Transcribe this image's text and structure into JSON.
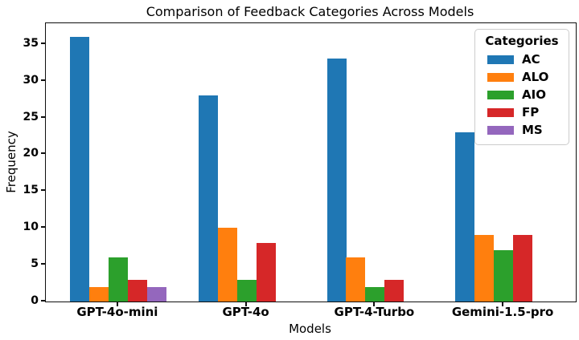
{
  "chart_data": {
    "type": "bar",
    "title": "Comparison of Feedback Categories Across Models",
    "xlabel": "Models",
    "ylabel": "Frequency",
    "categories": [
      "GPT-4o-mini",
      "GPT-4o",
      "GPT-4-Turbo",
      "Gemini-1.5-pro"
    ],
    "series": [
      {
        "name": "AC",
        "color": "#1f77b4",
        "values": [
          36,
          28,
          33,
          23
        ]
      },
      {
        "name": "ALO",
        "color": "#ff7f0e",
        "values": [
          2,
          10,
          6,
          9
        ]
      },
      {
        "name": "AIO",
        "color": "#2ca02c",
        "values": [
          6,
          3,
          2,
          7
        ]
      },
      {
        "name": "FP",
        "color": "#d62728",
        "values": [
          3,
          8,
          3,
          9
        ]
      },
      {
        "name": "MS",
        "color": "#9467bd",
        "values": [
          2,
          0,
          0,
          0
        ]
      }
    ],
    "legend": {
      "title": "Categories",
      "position": "upper right"
    },
    "ylim": [
      0,
      37.8
    ],
    "yticks": [
      0,
      5,
      10,
      15,
      20,
      25,
      30,
      35
    ],
    "grid": false,
    "bar_width": 0.15
  }
}
